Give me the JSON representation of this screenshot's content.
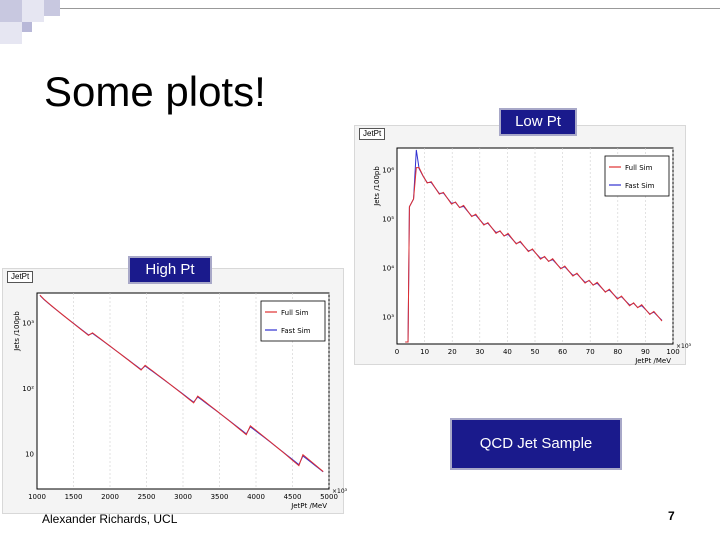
{
  "slide": {
    "title": "Some plots!",
    "footer_author": "Alexander Richards, UCL",
    "page_number": "7"
  },
  "labels": {
    "low_pt": "Low Pt",
    "high_pt": "High Pt",
    "qcd": "QCD Jet Sample"
  },
  "plots": {
    "low": {
      "tag": "JetPt",
      "ylabel": "Jets /100pb",
      "xlabel": "JetPt /MeV",
      "legend_full": "Full Sim",
      "legend_fast": "Fast Sim",
      "x_ticks": [
        "0",
        "10",
        "20",
        "30",
        "40",
        "50",
        "60",
        "70",
        "80",
        "90",
        "100"
      ],
      "y_ticks": [
        "10³",
        "10⁴",
        "10⁵",
        "10⁶"
      ],
      "x_multiplier": "×10³"
    },
    "high": {
      "tag": "JetPt",
      "ylabel": "Jets /100pb",
      "xlabel": "JetPt /MeV",
      "legend_full": "Full Sim",
      "legend_fast": "Fast Sim",
      "x_ticks": [
        "1000",
        "1500",
        "2000",
        "2500",
        "3000",
        "3500",
        "4000",
        "4500",
        "5000"
      ],
      "y_ticks": [
        "10",
        "10²",
        "10³"
      ],
      "x_multiplier": "×10³"
    }
  },
  "colors": {
    "full_sim": "#e03030",
    "fast_sim": "#3030d0",
    "label_bg": "#1a1a8c"
  }
}
